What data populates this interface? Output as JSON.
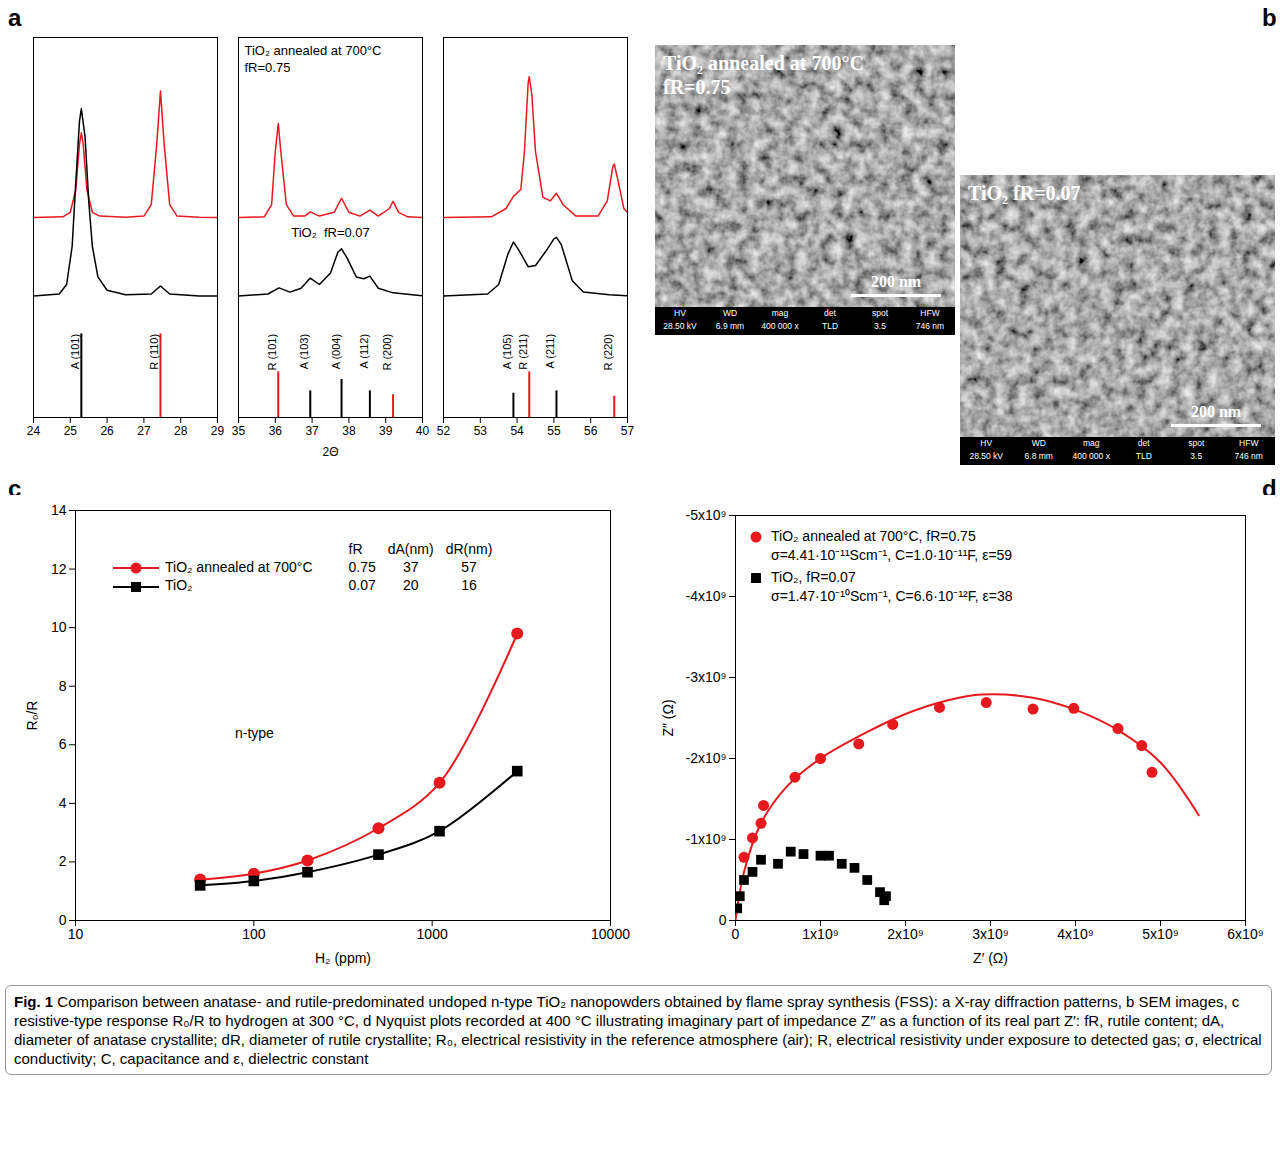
{
  "chart_data": [
    {
      "panel": "a",
      "type": "line",
      "xlabel": "2Θ",
      "ylim": [
        0,
        100
      ],
      "yticks": [],
      "tick_labels": "x",
      "series": [
        {
          "color": "#e8191e"
        },
        {
          "color": "#000000"
        }
      ],
      "subplots": [
        {
          "xlim": [
            24,
            29
          ],
          "xticks": [
            24,
            25,
            26,
            27,
            28,
            29
          ],
          "series": [
            {
              "x": [
                24,
                24.8,
                25.0,
                25.15,
                25.25,
                25.3,
                25.35,
                25.45,
                25.6,
                25.8,
                26.5,
                27.0,
                27.2,
                27.35,
                27.45,
                27.55,
                27.7,
                27.9,
                28.5,
                29
              ],
              "values": [
                52.6,
                52.8,
                54,
                60,
                72,
                74.9,
                72,
                60,
                54,
                53,
                52.7,
                53,
                56,
                72,
                85.9,
                72,
                56,
                53,
                52.7,
                52.6
              ]
            },
            {
              "x": [
                24,
                24.7,
                24.9,
                25.05,
                25.15,
                25.25,
                25.3,
                25.4,
                25.5,
                25.6,
                25.75,
                26,
                26.5,
                27.2,
                27.45,
                27.7,
                28.5,
                29
              ],
              "values": [
                32,
                32.5,
                35,
                45,
                62,
                78,
                81.3,
                74,
                57,
                45,
                37,
                33.5,
                32.3,
                32.5,
                34.6,
                32.5,
                32,
                32
              ]
            }
          ],
          "reference_peaks": [
            {
              "x": 25.3,
              "height": 22,
              "label": "A (101)",
              "color": "#000000"
            },
            {
              "x": 27.45,
              "height": 22,
              "label": "R (110)",
              "color": "#e8191e"
            }
          ]
        },
        {
          "xlim": [
            35,
            40
          ],
          "xticks": [
            35,
            36,
            37,
            38,
            39,
            40
          ],
          "series": [
            {
              "x": [
                35,
                35.7,
                35.9,
                36.0,
                36.08,
                36.15,
                36.3,
                36.5,
                36.8,
                36.95,
                37.2,
                37.6,
                37.8,
                38.0,
                38.3,
                38.57,
                38.8,
                39.1,
                39.2,
                39.35,
                39.6,
                40
              ],
              "values": [
                52.6,
                52.8,
                56,
                70,
                77.4,
                70,
                56,
                53,
                53,
                54.1,
                53,
                54,
                57.7,
                54,
                53,
                54.6,
                53,
                55,
                56.9,
                54,
                52.8,
                52.6
              ]
            },
            {
              "x": [
                35,
                35.8,
                36.1,
                36.4,
                36.7,
                36.95,
                37.2,
                37.5,
                37.7,
                37.8,
                37.95,
                38.2,
                38.4,
                38.57,
                38.8,
                39.2,
                40
              ],
              "values": [
                32,
                32.5,
                34.1,
                33,
                34,
                36.7,
                35,
                38,
                43.5,
                44.4,
                42,
                37,
                36.5,
                37.2,
                34,
                32.8,
                32
              ]
            }
          ],
          "annotations": [
            [
              "TiO₂ annealed at 700°C",
              "fR=0.75"
            ],
            [
              "TiO₂  fR=0.07"
            ]
          ],
          "reference_peaks": [
            {
              "x": 36.08,
              "height": 12,
              "label": "R (101)",
              "color": "#e8191e"
            },
            {
              "x": 36.95,
              "height": 7,
              "label": "A (103)",
              "color": "#000000"
            },
            {
              "x": 37.8,
              "height": 10,
              "label": "A (004)",
              "color": "#000000"
            },
            {
              "x": 38.57,
              "height": 7,
              "label": "A (112)",
              "color": "#000000"
            },
            {
              "x": 39.2,
              "height": 6,
              "label": "R (200)",
              "color": "#e8191e"
            }
          ]
        },
        {
          "xlim": [
            52,
            57
          ],
          "xticks": [
            52,
            53,
            54,
            55,
            56,
            57
          ],
          "series": [
            {
              "x": [
                52,
                53.3,
                53.7,
                53.9,
                54.1,
                54.2,
                54.3,
                54.33,
                54.4,
                54.5,
                54.7,
                54.9,
                55.07,
                55.25,
                55.6,
                56.2,
                56.45,
                56.6,
                56.64,
                56.75,
                56.9,
                57
              ],
              "values": [
                52.6,
                52.8,
                55,
                58.2,
                60,
                70,
                88,
                89.7,
                85,
                70,
                58,
                57,
                59,
                56,
                53,
                53,
                57,
                66,
                66.7,
                62,
                55,
                54
              ]
            },
            {
              "x": [
                52,
                53.2,
                53.5,
                53.75,
                53.9,
                54.05,
                54.3,
                54.5,
                54.8,
                55.0,
                55.07,
                55.2,
                55.5,
                55.8,
                56.5,
                57
              ],
              "values": [
                32,
                32.5,
                35,
                43,
                46.2,
                44,
                39.7,
                40,
                44,
                47,
                47.4,
                45.5,
                36,
                33,
                32.3,
                32
              ]
            }
          ],
          "reference_peaks": [
            {
              "x": 53.9,
              "height": 6.4,
              "label": "A (105)",
              "color": "#000000"
            },
            {
              "x": 54.33,
              "height": 12,
              "label": "R (211)",
              "color": "#e8191e"
            },
            {
              "x": 55.07,
              "height": 7,
              "label": "A (211)",
              "color": "#000000"
            },
            {
              "x": 56.64,
              "height": 5.6,
              "label": "R (220)",
              "color": "#e8191e"
            }
          ]
        }
      ]
    },
    {
      "panel": "c",
      "type": "line",
      "log": "x",
      "xlabel": "H₂ (ppm)",
      "ylabel": "R₀/R",
      "xlim": [
        10,
        10000
      ],
      "xticks": [
        10,
        100,
        1000,
        10000
      ],
      "ylim": [
        0,
        14
      ],
      "yticks": [
        0,
        2,
        4,
        6,
        8,
        10,
        12,
        14
      ],
      "legend": "upper left",
      "annotations": [
        "n-type"
      ],
      "x": [
        50,
        100,
        200,
        500,
        1100,
        3000
      ],
      "series": [
        {
          "name": "TiO₂ annealed at 700°C",
          "color": "#e8191e",
          "marker": "circle",
          "line_style": "solid",
          "values": [
            1.4,
            1.6,
            2.05,
            3.15,
            4.7,
            9.8
          ]
        },
        {
          "name": "TiO₂",
          "color": "#000000",
          "marker": "square",
          "line_style": "solid",
          "values": [
            1.2,
            1.35,
            1.65,
            2.25,
            3.05,
            5.1
          ]
        }
      ],
      "table": {
        "columns": [
          "fR",
          "dA(nm)",
          "dR(nm)"
        ],
        "rows": [
          [
            0.75,
            37,
            57
          ],
          [
            0.07,
            20,
            16
          ]
        ]
      }
    },
    {
      "panel": "d",
      "type": "scatter",
      "xlabel": "Z′ (Ω)",
      "ylabel": "Z″ (Ω)",
      "xlim": [
        0,
        6000000000.0
      ],
      "xticks": [
        0,
        {
          "value": 1000000000.0,
          "label": "1x10⁹"
        },
        {
          "value": 2000000000.0,
          "label": "2x10⁹"
        },
        {
          "value": 3000000000.0,
          "label": "3x10⁹"
        },
        {
          "value": 4000000000.0,
          "label": "4x10⁹"
        },
        {
          "value": 5000000000.0,
          "label": "5x10⁹"
        },
        {
          "value": 6000000000.0,
          "label": "6x10⁹"
        }
      ],
      "ylim": [
        0,
        -5000000000.0
      ],
      "yticks": [
        0,
        {
          "value": -1000000000.0,
          "label": "-1x10⁹"
        },
        {
          "value": -2000000000.0,
          "label": "-2x10⁹"
        },
        {
          "value": -3000000000.0,
          "label": "-3x10⁹"
        },
        {
          "value": -4000000000.0,
          "label": "-4x10⁹"
        },
        {
          "value": -5000000000.0,
          "label": "-5x10⁹"
        }
      ],
      "legend": "upper left",
      "series": [
        {
          "name": "TiO₂ annealed at 700°C, fR=0.75",
          "annotations": [
            "σ=4.41·10⁻¹¹Scm⁻¹, C=1.0·10⁻¹¹F, ε=59"
          ],
          "color": "#e8191e",
          "marker": "circle",
          "x": [
            100000000.0,
            200000000.0,
            300000000.0,
            330000000.0,
            700000000.0,
            1000000000.0,
            1450000000.0,
            1850000000.0,
            2400000000.0,
            2950000000.0,
            3500000000.0,
            3980000000.0,
            4500000000.0,
            4780000000.0,
            4900000000.0
          ],
          "values": [
            -780000000.0,
            -1020000000.0,
            -1200000000.0,
            -1420000000.0,
            -1770000000.0,
            -2000000000.0,
            -2180000000.0,
            -2420000000.0,
            -2630000000.0,
            -2690000000.0,
            -2610000000.0,
            -2620000000.0,
            -2370000000.0,
            -2160000000.0,
            -1830000000.0
          ],
          "fit_x": [
            0,
            100000000.0,
            300000000.0,
            600000000.0,
            1000000000.0,
            1500000000.0,
            2000000000.0,
            2500000000.0,
            2900000000.0,
            3500000000.0,
            4000000000.0,
            4500000000.0,
            5000000000.0,
            5450000000.0
          ],
          "fit_values": [
            0,
            -600000000.0,
            -1200000000.0,
            -1650000000.0,
            -2000000000.0,
            -2300000000.0,
            -2550000000.0,
            -2720000000.0,
            -2790000000.0,
            -2750000000.0,
            -2600000000.0,
            -2350000000.0,
            -1950000000.0,
            -1300000000.0
          ]
        },
        {
          "name": "TiO₂, fR=0.07",
          "annotations": [
            "σ=1.47·10⁻¹⁰Scm⁻¹, C=6.6·10⁻¹²F, ε=38"
          ],
          "color": "#000000",
          "marker": "square",
          "x": [
            20000000.0,
            50000000.0,
            100000000.0,
            200000000.0,
            300000000.0,
            500000000.0,
            650000000.0,
            800000000.0,
            1000000000.0,
            1100000000.0,
            1250000000.0,
            1400000000.0,
            1550000000.0,
            1700000000.0,
            1750000000.0,
            1770000000.0
          ],
          "values": [
            -150000000.0,
            -300000000.0,
            -500000000.0,
            -600000000.0,
            -750000000.0,
            -700000000.0,
            -850000000.0,
            -820000000.0,
            -800000000.0,
            -800000000.0,
            -700000000.0,
            -650000000.0,
            -500000000.0,
            -350000000.0,
            -250000000.0,
            -300000000.0
          ]
        }
      ]
    }
  ],
  "images": {
    "panel": "b",
    "items": [
      {
        "title": [
          "TiO₂ annealed at 700°C",
          "fR=0.75"
        ],
        "scale_bar": "200 nm",
        "info": {
          "headers": [
            "HV",
            "WD",
            "mag",
            "det",
            "spot",
            "HFW"
          ],
          "values": [
            "28.50 kV",
            "6.9 mm",
            "400 000 x",
            "TLD",
            "3.5",
            "746 nm"
          ]
        }
      },
      {
        "title": [
          "TiO₂ fR=0.07"
        ],
        "scale_bar": "200 nm",
        "info": {
          "headers": [
            "HV",
            "WD",
            "mag",
            "det",
            "spot",
            "HFW"
          ],
          "values": [
            "28.50 kV",
            "6.8 mm",
            "400 000 x",
            "TLD",
            "3.5",
            "746 nm"
          ]
        }
      }
    ]
  },
  "figure": {
    "caption": {
      "label": "Fig. 1",
      "text": "Comparison between anatase- and rutile-predominated undoped n-type TiO₂ nanopowders obtained by flame spray synthesis (FSS): a X-ray diffraction patterns, b SEM images, c resistive-type response R₀/R to hydrogen at 300 °C, d Nyquist plots recorded at 400 °C illustrating imaginary part of impedance Z″ as a function of its real part Z′: fR, rutile content; dA, diameter of anatase crystallite; dR, diameter of rutile crystallite; R₀, electrical resistivity in the reference atmosphere (air); R, electrical resistivity under exposure to detected gas; σ, electrical conductivity; C, capacitance and ε, dielectric constant"
    }
  }
}
